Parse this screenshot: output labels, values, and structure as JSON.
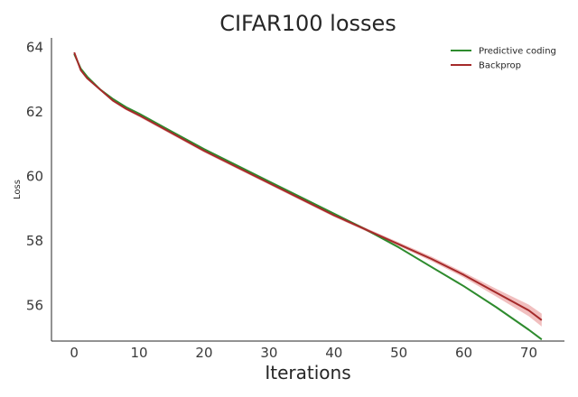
{
  "chart_data": {
    "type": "line",
    "title": "CIFAR100 losses",
    "xlabel": "Iterations",
    "ylabel": "Loss",
    "xlim": [
      -3.5,
      75.5
    ],
    "ylim": [
      54.9,
      64.3
    ],
    "xticks": [
      0,
      10,
      20,
      30,
      40,
      50,
      60,
      70
    ],
    "yticks": [
      56,
      58,
      60,
      62,
      64
    ],
    "grid": false,
    "legend_position": "top-right",
    "series": [
      {
        "name": "Predictive coding",
        "color": "#2e8b2e",
        "x": [
          0,
          1,
          2,
          4,
          6,
          8,
          10,
          15,
          20,
          25,
          30,
          35,
          40,
          45,
          50,
          55,
          60,
          65,
          70,
          72
        ],
        "y": [
          63.8,
          63.35,
          63.1,
          62.7,
          62.4,
          62.15,
          61.95,
          61.4,
          60.85,
          60.35,
          59.85,
          59.35,
          58.85,
          58.35,
          57.8,
          57.2,
          56.6,
          55.95,
          55.25,
          54.95
        ],
        "band": 0.03
      },
      {
        "name": "Backprop",
        "color": "#a52a2a",
        "band_color": "#e07070",
        "x": [
          0,
          1,
          2,
          4,
          6,
          8,
          10,
          15,
          20,
          25,
          30,
          35,
          40,
          45,
          50,
          55,
          60,
          65,
          70,
          72
        ],
        "y": [
          63.85,
          63.3,
          63.05,
          62.7,
          62.35,
          62.1,
          61.9,
          61.35,
          60.8,
          60.3,
          59.8,
          59.3,
          58.8,
          58.35,
          57.9,
          57.45,
          56.95,
          56.4,
          55.85,
          55.55
        ],
        "band": [
          0.03,
          0.03,
          0.03,
          0.03,
          0.04,
          0.04,
          0.05,
          0.05,
          0.05,
          0.05,
          0.05,
          0.05,
          0.05,
          0.05,
          0.06,
          0.07,
          0.08,
          0.12,
          0.18,
          0.2
        ]
      }
    ]
  }
}
